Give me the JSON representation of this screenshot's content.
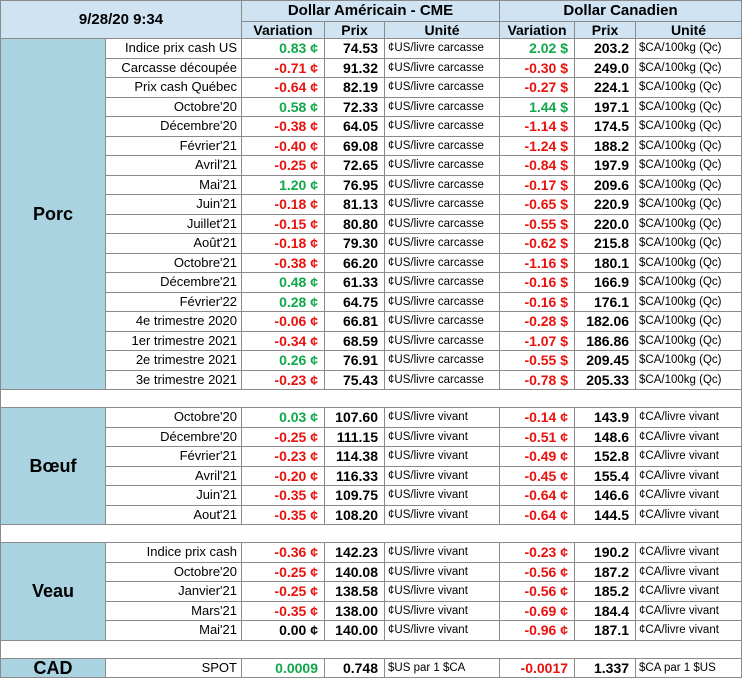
{
  "header": {
    "date": "9/28/20 9:34",
    "usd_title": "Dollar Américain - CME",
    "cad_title": "Dollar Canadien",
    "col_variation": "Variation",
    "col_prix": "Prix",
    "col_unite": "Unité"
  },
  "sections": [
    {
      "category": "Porc",
      "rows": [
        {
          "label": "Indice prix cash US",
          "usd_var": "0.83 ¢",
          "usd_sign": "pos",
          "usd_prix": "74.53",
          "usd_unit": "¢US/livre carcasse",
          "cad_var": "2.02 $",
          "cad_sign": "pos",
          "cad_prix": "203.2",
          "cad_unit": "$CA/100kg (Qc)"
        },
        {
          "label": "Carcasse découpée",
          "usd_var": "-0.71 ¢",
          "usd_sign": "neg",
          "usd_prix": "91.32",
          "usd_unit": "¢US/livre carcasse",
          "cad_var": "-0.30 $",
          "cad_sign": "neg",
          "cad_prix": "249.0",
          "cad_unit": "$CA/100kg (Qc)"
        },
        {
          "label": "Prix cash Québec",
          "usd_var": "-0.64 ¢",
          "usd_sign": "neg",
          "usd_prix": "82.19",
          "usd_unit": "¢US/livre carcasse",
          "cad_var": "-0.27 $",
          "cad_sign": "neg",
          "cad_prix": "224.1",
          "cad_unit": "$CA/100kg (Qc)"
        },
        {
          "label": "Octobre'20",
          "usd_var": "0.58 ¢",
          "usd_sign": "pos",
          "usd_prix": "72.33",
          "usd_unit": "¢US/livre carcasse",
          "cad_var": "1.44 $",
          "cad_sign": "pos",
          "cad_prix": "197.1",
          "cad_unit": "$CA/100kg (Qc)"
        },
        {
          "label": "Décembre'20",
          "usd_var": "-0.38 ¢",
          "usd_sign": "neg",
          "usd_prix": "64.05",
          "usd_unit": "¢US/livre carcasse",
          "cad_var": "-1.14 $",
          "cad_sign": "neg",
          "cad_prix": "174.5",
          "cad_unit": "$CA/100kg (Qc)"
        },
        {
          "label": "Février'21",
          "usd_var": "-0.40 ¢",
          "usd_sign": "neg",
          "usd_prix": "69.08",
          "usd_unit": "¢US/livre carcasse",
          "cad_var": "-1.24 $",
          "cad_sign": "neg",
          "cad_prix": "188.2",
          "cad_unit": "$CA/100kg (Qc)"
        },
        {
          "label": "Avril'21",
          "usd_var": "-0.25 ¢",
          "usd_sign": "neg",
          "usd_prix": "72.65",
          "usd_unit": "¢US/livre carcasse",
          "cad_var": "-0.84 $",
          "cad_sign": "neg",
          "cad_prix": "197.9",
          "cad_unit": "$CA/100kg (Qc)"
        },
        {
          "label": "Mai'21",
          "usd_var": "1.20 ¢",
          "usd_sign": "pos",
          "usd_prix": "76.95",
          "usd_unit": "¢US/livre carcasse",
          "cad_var": "-0.17 $",
          "cad_sign": "neg",
          "cad_prix": "209.6",
          "cad_unit": "$CA/100kg (Qc)"
        },
        {
          "label": "Juin'21",
          "usd_var": "-0.18 ¢",
          "usd_sign": "neg",
          "usd_prix": "81.13",
          "usd_unit": "¢US/livre carcasse",
          "cad_var": "-0.65 $",
          "cad_sign": "neg",
          "cad_prix": "220.9",
          "cad_unit": "$CA/100kg (Qc)"
        },
        {
          "label": "Juillet'21",
          "usd_var": "-0.15 ¢",
          "usd_sign": "neg",
          "usd_prix": "80.80",
          "usd_unit": "¢US/livre carcasse",
          "cad_var": "-0.55 $",
          "cad_sign": "neg",
          "cad_prix": "220.0",
          "cad_unit": "$CA/100kg (Qc)"
        },
        {
          "label": "Août'21",
          "usd_var": "-0.18 ¢",
          "usd_sign": "neg",
          "usd_prix": "79.30",
          "usd_unit": "¢US/livre carcasse",
          "cad_var": "-0.62 $",
          "cad_sign": "neg",
          "cad_prix": "215.8",
          "cad_unit": "$CA/100kg (Qc)"
        },
        {
          "label": "Octobre'21",
          "usd_var": "-0.38 ¢",
          "usd_sign": "neg",
          "usd_prix": "66.20",
          "usd_unit": "¢US/livre carcasse",
          "cad_var": "-1.16 $",
          "cad_sign": "neg",
          "cad_prix": "180.1",
          "cad_unit": "$CA/100kg (Qc)"
        },
        {
          "label": "Décembre'21",
          "usd_var": "0.48 ¢",
          "usd_sign": "pos",
          "usd_prix": "61.33",
          "usd_unit": "¢US/livre carcasse",
          "cad_var": "-0.16 $",
          "cad_sign": "neg",
          "cad_prix": "166.9",
          "cad_unit": "$CA/100kg (Qc)"
        },
        {
          "label": "Février'22",
          "usd_var": "0.28 ¢",
          "usd_sign": "pos",
          "usd_prix": "64.75",
          "usd_unit": "¢US/livre carcasse",
          "cad_var": "-0.16 $",
          "cad_sign": "neg",
          "cad_prix": "176.1",
          "cad_unit": "$CA/100kg (Qc)"
        },
        {
          "label": "4e trimestre 2020",
          "usd_var": "-0.06 ¢",
          "usd_sign": "neg",
          "usd_prix": "66.81",
          "usd_unit": "¢US/livre carcasse",
          "cad_var": "-0.28 $",
          "cad_sign": "neg",
          "cad_prix": "182.06",
          "cad_unit": "$CA/100kg (Qc)"
        },
        {
          "label": "1er trimestre 2021",
          "usd_var": "-0.34 ¢",
          "usd_sign": "neg",
          "usd_prix": "68.59",
          "usd_unit": "¢US/livre carcasse",
          "cad_var": "-1.07 $",
          "cad_sign": "neg",
          "cad_prix": "186.86",
          "cad_unit": "$CA/100kg (Qc)"
        },
        {
          "label": "2e trimestre 2021",
          "usd_var": "0.26 ¢",
          "usd_sign": "pos",
          "usd_prix": "76.91",
          "usd_unit": "¢US/livre carcasse",
          "cad_var": "-0.55 $",
          "cad_sign": "neg",
          "cad_prix": "209.45",
          "cad_unit": "$CA/100kg (Qc)"
        },
        {
          "label": "3e trimestre 2021",
          "usd_var": "-0.23 ¢",
          "usd_sign": "neg",
          "usd_prix": "75.43",
          "usd_unit": "¢US/livre carcasse",
          "cad_var": "-0.78 $",
          "cad_sign": "neg",
          "cad_prix": "205.33",
          "cad_unit": "$CA/100kg (Qc)"
        }
      ]
    },
    {
      "category": "Bœuf",
      "rows": [
        {
          "label": "Octobre'20",
          "usd_var": "0.03 ¢",
          "usd_sign": "pos",
          "usd_prix": "107.60",
          "usd_unit": "¢US/livre vivant",
          "cad_var": "-0.14 ¢",
          "cad_sign": "neg",
          "cad_prix": "143.9",
          "cad_unit": "¢CA/livre vivant"
        },
        {
          "label": "Décembre'20",
          "usd_var": "-0.25 ¢",
          "usd_sign": "neg",
          "usd_prix": "111.15",
          "usd_unit": "¢US/livre vivant",
          "cad_var": "-0.51 ¢",
          "cad_sign": "neg",
          "cad_prix": "148.6",
          "cad_unit": "¢CA/livre vivant"
        },
        {
          "label": "Février'21",
          "usd_var": "-0.23 ¢",
          "usd_sign": "neg",
          "usd_prix": "114.38",
          "usd_unit": "¢US/livre vivant",
          "cad_var": "-0.49 ¢",
          "cad_sign": "neg",
          "cad_prix": "152.8",
          "cad_unit": "¢CA/livre vivant"
        },
        {
          "label": "Avril'21",
          "usd_var": "-0.20 ¢",
          "usd_sign": "neg",
          "usd_prix": "116.33",
          "usd_unit": "¢US/livre vivant",
          "cad_var": "-0.45 ¢",
          "cad_sign": "neg",
          "cad_prix": "155.4",
          "cad_unit": "¢CA/livre vivant"
        },
        {
          "label": "Juin'21",
          "usd_var": "-0.35 ¢",
          "usd_sign": "neg",
          "usd_prix": "109.75",
          "usd_unit": "¢US/livre vivant",
          "cad_var": "-0.64 ¢",
          "cad_sign": "neg",
          "cad_prix": "146.6",
          "cad_unit": "¢CA/livre vivant"
        },
        {
          "label": "Aout'21",
          "usd_var": "-0.35 ¢",
          "usd_sign": "neg",
          "usd_prix": "108.20",
          "usd_unit": "¢US/livre vivant",
          "cad_var": "-0.64 ¢",
          "cad_sign": "neg",
          "cad_prix": "144.5",
          "cad_unit": "¢CA/livre vivant"
        }
      ]
    },
    {
      "category": "Veau",
      "rows": [
        {
          "label": "Indice prix cash",
          "usd_var": "-0.36 ¢",
          "usd_sign": "neg",
          "usd_prix": "142.23",
          "usd_unit": "¢US/livre vivant",
          "cad_var": "-0.23 ¢",
          "cad_sign": "neg",
          "cad_prix": "190.2",
          "cad_unit": "¢CA/livre vivant"
        },
        {
          "label": "Octobre'20",
          "usd_var": "-0.25 ¢",
          "usd_sign": "neg",
          "usd_prix": "140.08",
          "usd_unit": "¢US/livre vivant",
          "cad_var": "-0.56 ¢",
          "cad_sign": "neg",
          "cad_prix": "187.2",
          "cad_unit": "¢CA/livre vivant"
        },
        {
          "label": "Janvier'21",
          "usd_var": "-0.25 ¢",
          "usd_sign": "neg",
          "usd_prix": "138.58",
          "usd_unit": "¢US/livre vivant",
          "cad_var": "-0.56 ¢",
          "cad_sign": "neg",
          "cad_prix": "185.2",
          "cad_unit": "¢CA/livre vivant"
        },
        {
          "label": "Mars'21",
          "usd_var": "-0.35 ¢",
          "usd_sign": "neg",
          "usd_prix": "138.00",
          "usd_unit": "¢US/livre vivant",
          "cad_var": "-0.69 ¢",
          "cad_sign": "neg",
          "cad_prix": "184.4",
          "cad_unit": "¢CA/livre vivant"
        },
        {
          "label": "Mai'21",
          "usd_var": "0.00 ¢",
          "usd_sign": "zero",
          "usd_prix": "140.00",
          "usd_unit": "¢US/livre vivant",
          "cad_var": "-0.96 ¢",
          "cad_sign": "neg",
          "cad_prix": "187.1",
          "cad_unit": "¢CA/livre vivant"
        }
      ]
    }
  ],
  "cad": {
    "category": "CAD",
    "label": "SPOT",
    "usd_var": "0.0009",
    "usd_sign": "pos",
    "usd_prix": "0.748",
    "usd_unit": "$US par 1 $CA",
    "cad_var": "-0.0017",
    "cad_sign": "neg",
    "cad_prix": "1.337",
    "cad_unit": "$CA par 1 $US"
  }
}
